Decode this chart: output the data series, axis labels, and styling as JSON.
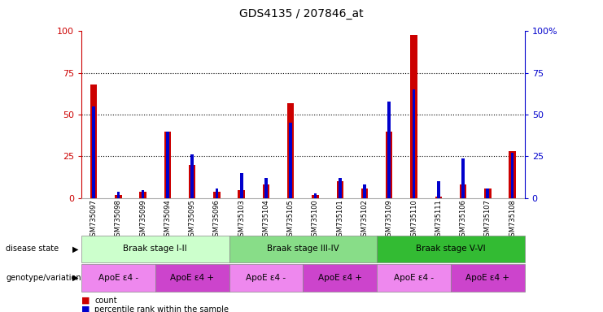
{
  "title": "GDS4135 / 207846_at",
  "samples": [
    "GSM735097",
    "GSM735098",
    "GSM735099",
    "GSM735094",
    "GSM735095",
    "GSM735096",
    "GSM735103",
    "GSM735104",
    "GSM735105",
    "GSM735100",
    "GSM735101",
    "GSM735102",
    "GSM735109",
    "GSM735110",
    "GSM735111",
    "GSM735106",
    "GSM735107",
    "GSM735108"
  ],
  "count_values": [
    68,
    2,
    4,
    40,
    20,
    4,
    5,
    8,
    57,
    2,
    10,
    6,
    40,
    98,
    1,
    8,
    6,
    28
  ],
  "percentile_values": [
    55,
    4,
    5,
    40,
    26,
    6,
    15,
    12,
    45,
    3,
    12,
    8,
    58,
    65,
    10,
    24,
    6,
    27
  ],
  "bar_color_red": "#cc0000",
  "bar_color_blue": "#0000cc",
  "ylim": [
    0,
    100
  ],
  "yticks": [
    0,
    25,
    50,
    75,
    100
  ],
  "grid_lines": [
    25,
    50,
    75
  ],
  "disease_state_groups": [
    {
      "label": "Braak stage I-II",
      "start": 0,
      "end": 6,
      "color": "#ccffcc"
    },
    {
      "label": "Braak stage III-IV",
      "start": 6,
      "end": 12,
      "color": "#88dd88"
    },
    {
      "label": "Braak stage V-VI",
      "start": 12,
      "end": 18,
      "color": "#33bb33"
    }
  ],
  "genotype_groups": [
    {
      "label": "ApoE ε4 -",
      "start": 0,
      "end": 3,
      "color": "#ee88ee"
    },
    {
      "label": "ApoE ε4 +",
      "start": 3,
      "end": 6,
      "color": "#cc44cc"
    },
    {
      "label": "ApoE ε4 -",
      "start": 6,
      "end": 9,
      "color": "#ee88ee"
    },
    {
      "label": "ApoE ε4 +",
      "start": 9,
      "end": 12,
      "color": "#cc44cc"
    },
    {
      "label": "ApoE ε4 -",
      "start": 12,
      "end": 15,
      "color": "#ee88ee"
    },
    {
      "label": "ApoE ε4 +",
      "start": 15,
      "end": 18,
      "color": "#cc44cc"
    }
  ],
  "legend_count_label": "count",
  "legend_percentile_label": "percentile rank within the sample",
  "label_disease_state": "disease state",
  "label_genotype": "genotype/variation",
  "background_color": "#ffffff",
  "plot_bg_color": "#ffffff"
}
